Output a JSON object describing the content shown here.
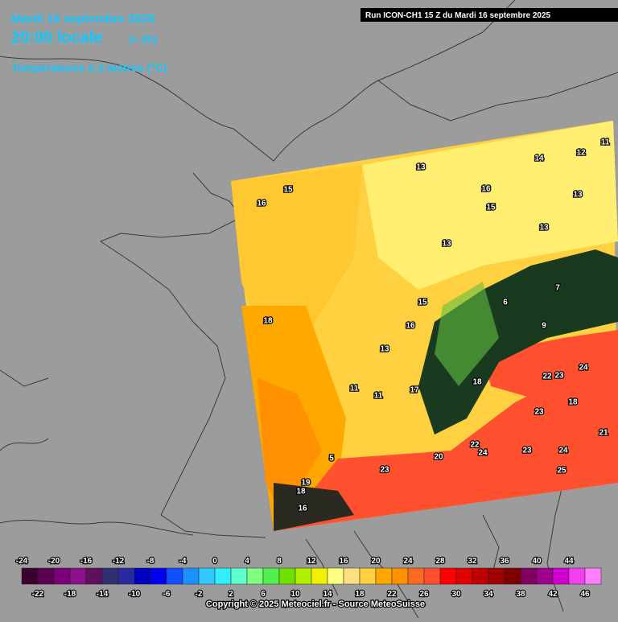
{
  "header": {
    "date": "Mardi 16 septembre 2025",
    "time": "20:00 locale",
    "offset": "(+ 3h)",
    "variable": "Températures à 2 mètres (°C)",
    "run": "Run ICON-CH1 15 Z du Mardi 16 septembre 2025"
  },
  "map_labels": [
    "16",
    "15",
    "13",
    "16",
    "14",
    "12",
    "11",
    "13",
    "15",
    "13",
    "13",
    "18",
    "15",
    "16",
    "13",
    "6",
    "7",
    "9",
    "24",
    "22",
    "23",
    "18",
    "17",
    "11",
    "11",
    "23",
    "18",
    "21",
    "22",
    "24",
    "20",
    "23",
    "24",
    "25",
    "23",
    "5",
    "19",
    "18",
    "16"
  ],
  "color_scale": {
    "top_labels": [
      "-24",
      "-20",
      "-16",
      "-12",
      "-8",
      "-4",
      "0",
      "4",
      "8",
      "12",
      "16",
      "20",
      "24",
      "28",
      "32",
      "36",
      "40",
      "44"
    ],
    "bottom_labels": [
      "-22",
      "-18",
      "-14",
      "-10",
      "-6",
      "-2",
      "2",
      "6",
      "10",
      "14",
      "18",
      "22",
      "26",
      "30",
      "34",
      "38",
      "42",
      "46"
    ],
    "colors": [
      "#3c0030",
      "#5a0050",
      "#780078",
      "#8c108c",
      "#60105a",
      "#303070",
      "#2a2aa0",
      "#0000c0",
      "#0000f0",
      "#1050ff",
      "#1e90ff",
      "#30c8ff",
      "#30f0ff",
      "#60ffd0",
      "#80ff80",
      "#50f050",
      "#70e000",
      "#b0f000",
      "#f0f000",
      "#ffff80",
      "#ffe080",
      "#ffd040",
      "#ffa800",
      "#ff9000",
      "#ff6a20",
      "#ff5030",
      "#ff0000",
      "#e00000",
      "#c00000",
      "#a00000",
      "#800000",
      "#800060",
      "#a00090",
      "#d000d0",
      "#f040f0",
      "#ff80ff"
    ]
  },
  "footer": "Copyright © 2025 Meteociel.fr - Source MeteoSuisse"
}
